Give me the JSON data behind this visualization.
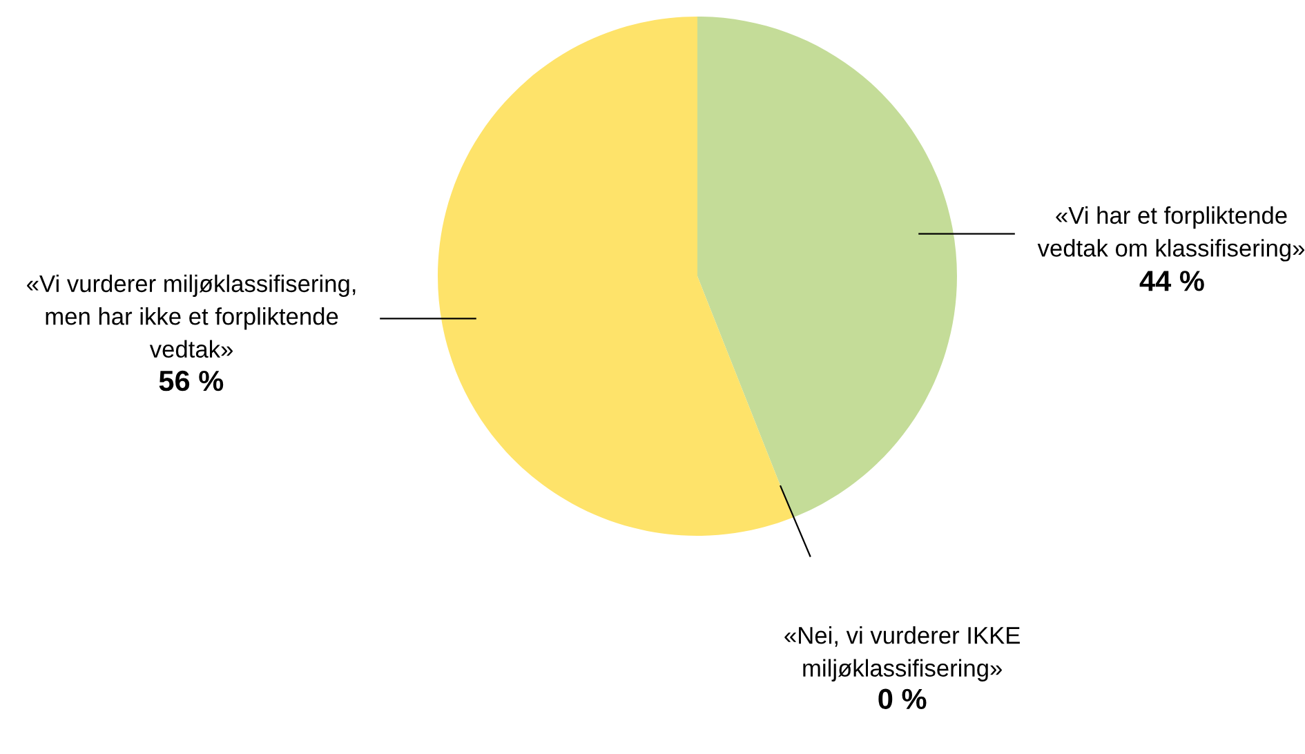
{
  "chart_data": {
    "type": "pie",
    "categories": [
      "«Vi har et forpliktende\nvedtak om klassifisering»",
      "«Nei, vi vurderer IKKE\nmiljøklassifisering»",
      "«Vi vurderer miljøklassifisering,\nmen har ikke et forpliktende\nvedtak»"
    ],
    "values": [
      44,
      0,
      56
    ],
    "value_labels": [
      "44 %",
      "0 %",
      "56 %"
    ],
    "colors": [
      "#c4dc98",
      "#c4dc98",
      "#fee36a"
    ]
  }
}
